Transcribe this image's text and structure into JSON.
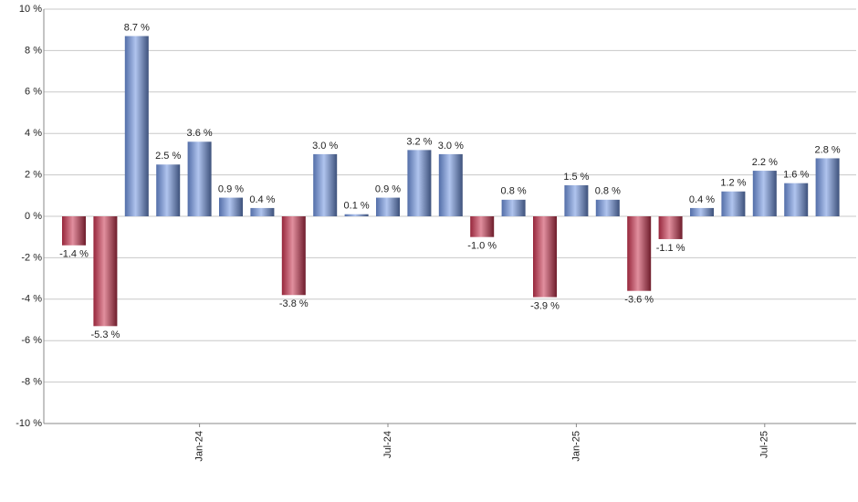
{
  "chart_data": {
    "type": "bar",
    "categories": [
      null,
      null,
      null,
      null,
      "Jan-24",
      null,
      null,
      null,
      null,
      null,
      "Jul-24",
      null,
      null,
      null,
      null,
      null,
      "Jan-25",
      null,
      null,
      null,
      null,
      null,
      "Jul-25",
      null,
      null
    ],
    "values": [
      -1.4,
      -5.3,
      8.7,
      2.5,
      3.6,
      0.9,
      0.4,
      -3.8,
      3.0,
      0.1,
      0.9,
      3.2,
      3.0,
      -1.0,
      0.8,
      -3.9,
      1.5,
      0.8,
      -3.6,
      -1.1,
      0.4,
      1.2,
      2.2,
      1.6,
      2.8
    ],
    "value_labels": [
      "-1.4 %",
      "-5.3 %",
      "8.7 %",
      "2.5 %",
      "3.6 %",
      "0.9 %",
      "0.4 %",
      "-3.8 %",
      "3.0 %",
      "0.1 %",
      "0.9 %",
      "3.2 %",
      "3.0 %",
      "-1.0 %",
      "0.8 %",
      "-3.9 %",
      "1.5 %",
      "0.8 %",
      "-3.6 %",
      "-1.1 %",
      "0.4 %",
      "1.2 %",
      "2.2 %",
      "1.6 %",
      "2.8 %"
    ],
    "positive_color": "#6f93e0",
    "negative_color": "#c8334f",
    "ylim": [
      -10,
      10
    ],
    "yticks": [
      {
        "value": -10,
        "label": "-10 %"
      },
      {
        "value": -8,
        "label": "-8 %"
      },
      {
        "value": -6,
        "label": "-6 %"
      },
      {
        "value": -4,
        "label": "-4 %"
      },
      {
        "value": -2,
        "label": "-2 %"
      },
      {
        "value": 0,
        "label": "0 %"
      },
      {
        "value": 2,
        "label": "2 %"
      },
      {
        "value": 4,
        "label": "4 %"
      },
      {
        "value": 6,
        "label": "6 %"
      },
      {
        "value": 8,
        "label": "8 %"
      },
      {
        "value": 10,
        "label": "10 %"
      }
    ],
    "grid": true
  }
}
